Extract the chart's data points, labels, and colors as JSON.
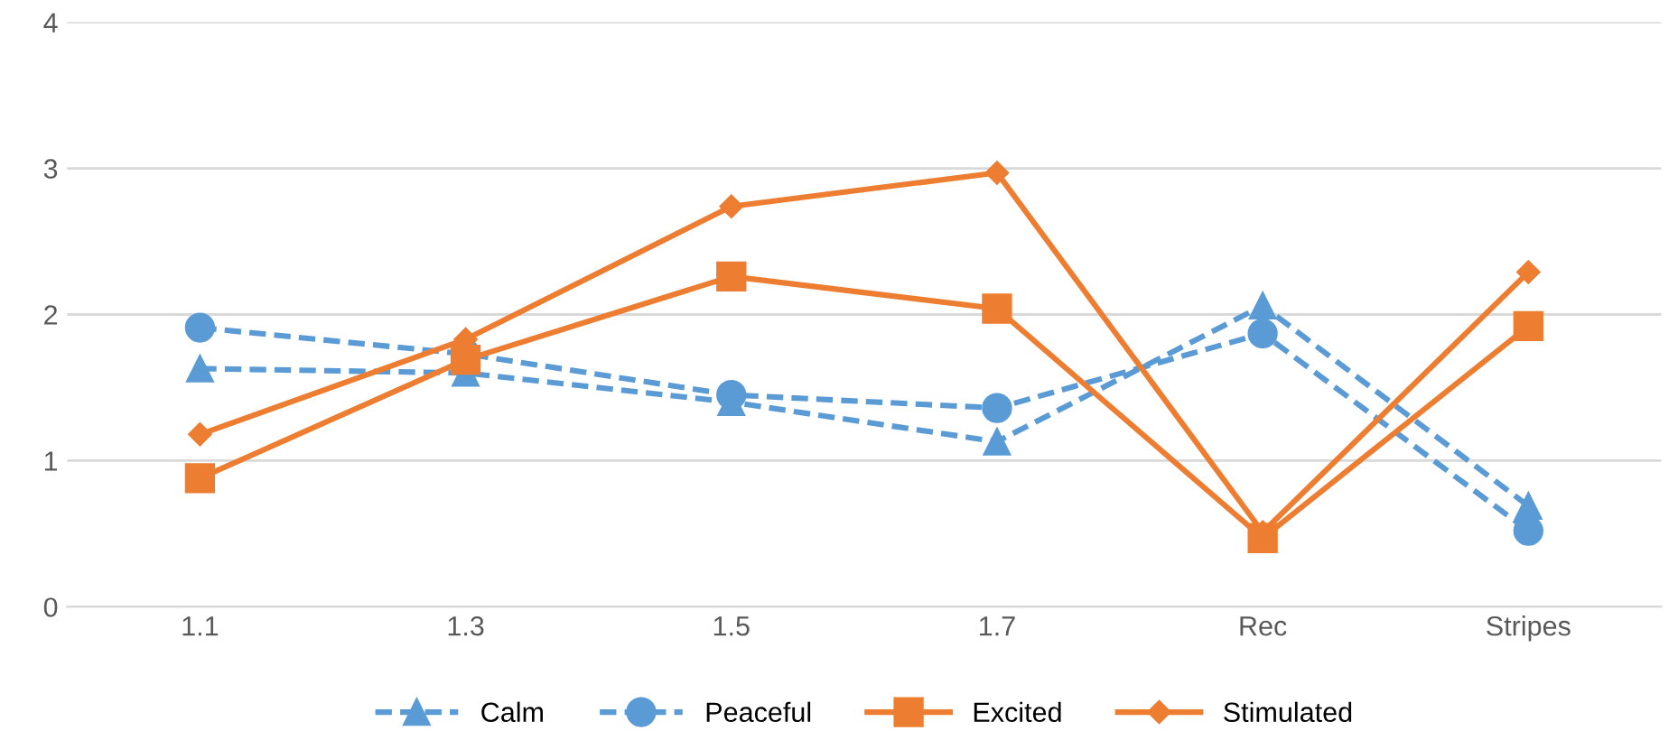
{
  "chart_data": {
    "type": "line",
    "categories": [
      "1.1",
      "1.3",
      "1.5",
      "1.7",
      "Rec",
      "Stripes"
    ],
    "series": [
      {
        "name": "Calm",
        "color": "#5b9bd5",
        "marker": "triangle",
        "line_style": "dashed",
        "values": [
          1.63,
          1.6,
          1.4,
          1.13,
          2.06,
          0.69
        ]
      },
      {
        "name": "Peaceful",
        "color": "#5b9bd5",
        "marker": "circle",
        "line_style": "dashed",
        "values": [
          1.91,
          1.73,
          1.45,
          1.36,
          1.87,
          0.52
        ]
      },
      {
        "name": "Excited",
        "color": "#ed7d31",
        "marker": "square",
        "line_style": "solid",
        "values": [
          0.88,
          1.69,
          2.26,
          2.04,
          0.47,
          1.92
        ]
      },
      {
        "name": "Stimulated",
        "color": "#ed7d31",
        "marker": "diamond",
        "line_style": "solid",
        "values": [
          1.18,
          1.83,
          2.74,
          2.97,
          0.51,
          2.29
        ]
      }
    ],
    "ylim": [
      0,
      4
    ],
    "yticks": [
      0,
      1,
      2,
      3,
      4
    ],
    "grid": "y",
    "legend": "bottom"
  }
}
